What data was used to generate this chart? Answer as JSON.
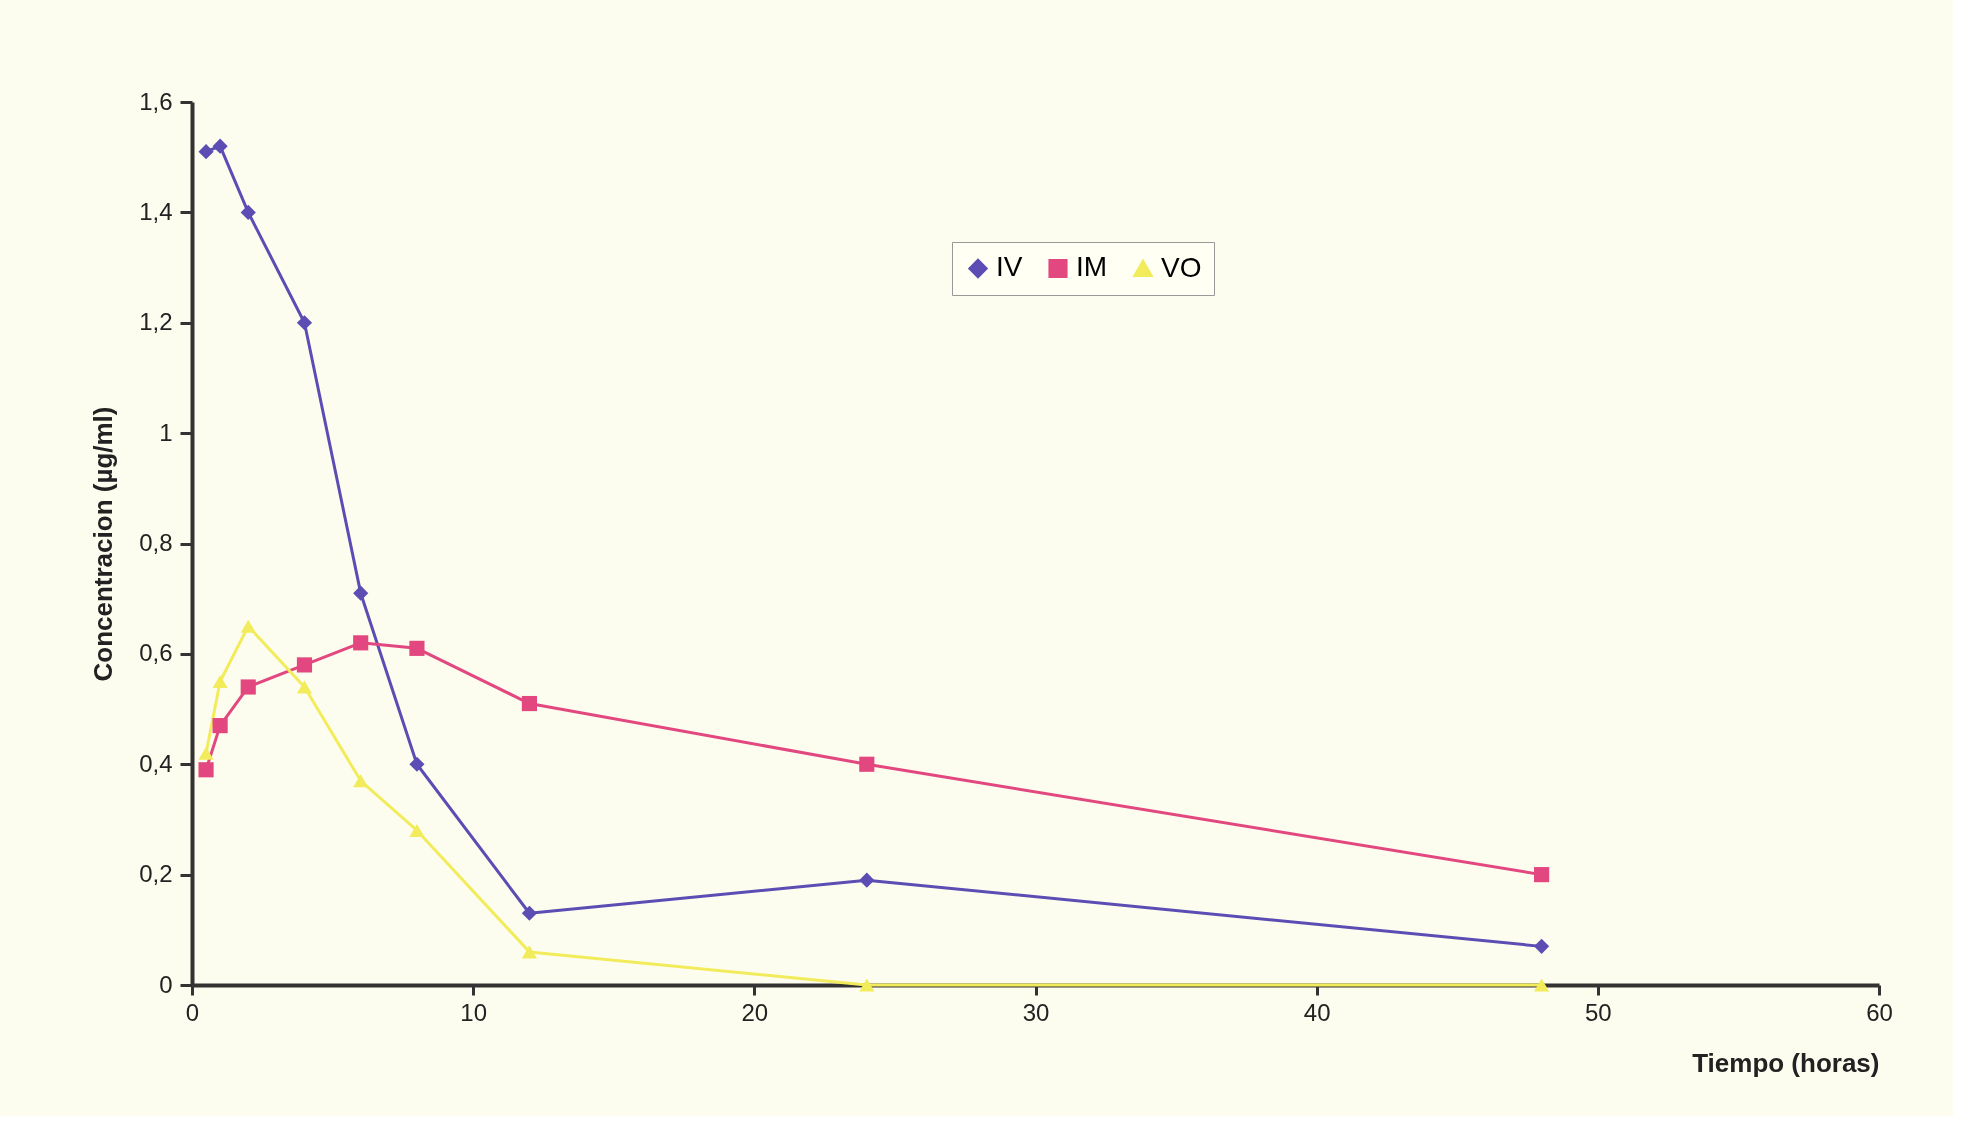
{
  "chart_data": {
    "type": "line",
    "xlabel": "Tiempo (horas)",
    "ylabel": "Concentracion (µg/ml)",
    "x": [
      0.5,
      1,
      2,
      4,
      6,
      8,
      12,
      24,
      48
    ],
    "series": [
      {
        "name": "IV",
        "color": "#5b4db3",
        "marker": "diamond",
        "values": [
          1.51,
          1.52,
          1.4,
          1.2,
          0.71,
          0.4,
          0.13,
          0.19,
          0.07
        ]
      },
      {
        "name": "IM",
        "color": "#e2487f",
        "marker": "square",
        "values": [
          0.39,
          0.47,
          0.54,
          0.58,
          0.62,
          0.61,
          0.51,
          0.4,
          0.2
        ]
      },
      {
        "name": "VO",
        "color": "#f2ec5c",
        "marker": "triangle",
        "values": [
          0.42,
          0.55,
          0.65,
          0.54,
          0.37,
          0.28,
          0.06,
          0,
          0
        ]
      }
    ],
    "xlim": [
      0,
      60
    ],
    "xticks": [
      0,
      10,
      20,
      30,
      40,
      50,
      60
    ],
    "ylim": [
      0,
      1.6
    ],
    "yticks": [
      0,
      {
        "value": 0.2,
        "label": "0,2"
      },
      {
        "value": 0.4,
        "label": "0,4"
      },
      {
        "value": 0.6,
        "label": "0,6"
      },
      {
        "value": 0.8,
        "label": "0,8"
      },
      1,
      {
        "value": 1.2,
        "label": "1,2"
      },
      {
        "value": 1.4,
        "label": "1,4"
      },
      {
        "value": 1.6,
        "label": "1,6"
      }
    ],
    "grid": false,
    "legend": "top",
    "line_style": "solid"
  }
}
